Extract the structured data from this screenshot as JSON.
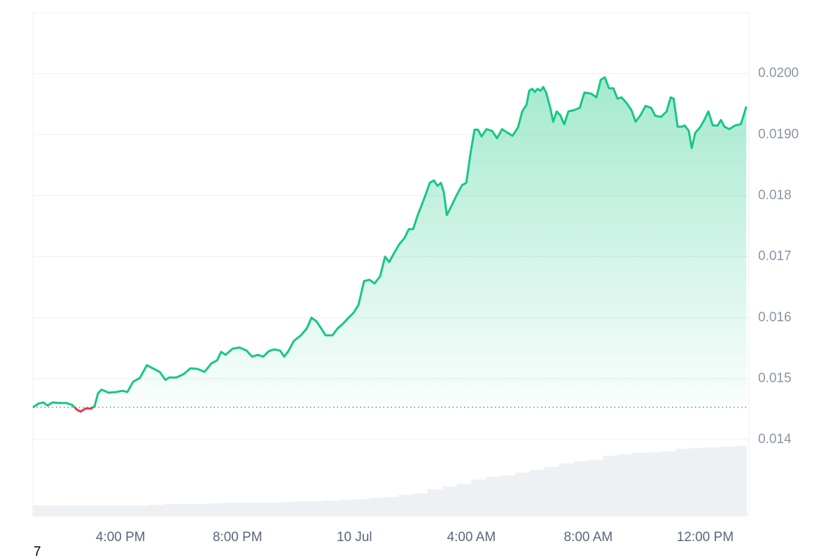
{
  "chart_data": {
    "type": "line",
    "color": "#16c784",
    "down_color": "#ea3943",
    "grid": true,
    "x": [
      13.0,
      13.19,
      13.36,
      13.5,
      13.67,
      13.91,
      14.15,
      14.34,
      14.51,
      14.63,
      14.8,
      14.99,
      15.11,
      15.23,
      15.35,
      15.59,
      15.83,
      16.07,
      16.23,
      16.43,
      16.66,
      16.9,
      17.14,
      17.34,
      17.53,
      17.67,
      17.91,
      18.15,
      18.39,
      18.63,
      18.87,
      19.11,
      19.3,
      19.44,
      19.59,
      19.83,
      20.07,
      20.31,
      20.5,
      20.69,
      20.88,
      21.07,
      21.26,
      21.46,
      21.6,
      21.74,
      21.93,
      22.17,
      22.37,
      22.53,
      22.7,
      22.84,
      23.01,
      23.25,
      23.42,
      23.61,
      23.8,
      23.97,
      24.14,
      24.33,
      24.52,
      24.69,
      24.88,
      25.05,
      25.19,
      25.36,
      25.53,
      25.72,
      25.86,
      26.01,
      26.15,
      26.29,
      26.44,
      26.58,
      26.72,
      26.84,
      26.96,
      27.06,
      27.16,
      27.32,
      27.49,
      27.68,
      27.83,
      27.97,
      28.11,
      28.23,
      28.35,
      28.52,
      28.71,
      28.88,
      29.05,
      29.24,
      29.41,
      29.6,
      29.74,
      29.89,
      29.98,
      30.08,
      30.17,
      30.27,
      30.37,
      30.46,
      30.56,
      30.7,
      30.8,
      30.92,
      31.04,
      31.18,
      31.32,
      31.51,
      31.71,
      31.87,
      32.11,
      32.28,
      32.43,
      32.57,
      32.71,
      32.86,
      33.0,
      33.14,
      33.31,
      33.48,
      33.62,
      33.79,
      33.96,
      34.15,
      34.29,
      34.49,
      34.68,
      34.82,
      34.92,
      35.06,
      35.2,
      35.3,
      35.44,
      35.54,
      35.66,
      35.83,
      35.97,
      36.11,
      36.26,
      36.43,
      36.54,
      36.66,
      36.83,
      37.02,
      37.22,
      37.41
    ],
    "values": [
      0.01453,
      0.01459,
      0.01461,
      0.01456,
      0.01461,
      0.0146,
      0.0146,
      0.01457,
      0.01449,
      0.01446,
      0.01451,
      0.01451,
      0.01455,
      0.01476,
      0.01482,
      0.01477,
      0.01478,
      0.0148,
      0.01478,
      0.01495,
      0.01501,
      0.01522,
      0.01516,
      0.01511,
      0.01498,
      0.01502,
      0.01502,
      0.01507,
      0.01517,
      0.01516,
      0.01511,
      0.01525,
      0.0153,
      0.01544,
      0.01539,
      0.01549,
      0.01551,
      0.01546,
      0.01536,
      0.01539,
      0.01536,
      0.01545,
      0.01548,
      0.01546,
      0.01536,
      0.01545,
      0.01562,
      0.01571,
      0.01582,
      0.016,
      0.01594,
      0.01584,
      0.01571,
      0.01571,
      0.01582,
      0.0159,
      0.016,
      0.01608,
      0.01621,
      0.0166,
      0.01662,
      0.01656,
      0.01668,
      0.017,
      0.01691,
      0.01706,
      0.0172,
      0.01731,
      0.01745,
      0.01745,
      0.01766,
      0.01783,
      0.01802,
      0.01821,
      0.01825,
      0.01816,
      0.01821,
      0.01805,
      0.01768,
      0.01783,
      0.018,
      0.01817,
      0.01821,
      0.01869,
      0.01908,
      0.01908,
      0.01897,
      0.01909,
      0.01906,
      0.01894,
      0.01909,
      0.01903,
      0.01898,
      0.01912,
      0.01938,
      0.01949,
      0.01972,
      0.01975,
      0.0197,
      0.01975,
      0.01972,
      0.01978,
      0.01969,
      0.01944,
      0.01921,
      0.01938,
      0.01932,
      0.01917,
      0.01938,
      0.0194,
      0.01944,
      0.01969,
      0.01967,
      0.01961,
      0.0199,
      0.01994,
      0.01976,
      0.01976,
      0.01959,
      0.01961,
      0.01952,
      0.0194,
      0.01921,
      0.01932,
      0.01947,
      0.01944,
      0.01931,
      0.01929,
      0.01938,
      0.01961,
      0.01959,
      0.01913,
      0.01913,
      0.01915,
      0.01906,
      0.01878,
      0.01903,
      0.01912,
      0.01924,
      0.01938,
      0.01915,
      0.01915,
      0.01924,
      0.01913,
      0.01909,
      0.01915,
      0.01917,
      0.01946
    ],
    "volume": {
      "x": [
        13.0,
        13.5,
        14.0,
        14.5,
        15.0,
        15.5,
        16.0,
        16.5,
        17.0,
        17.5,
        18.0,
        18.5,
        19.0,
        19.5,
        20.0,
        20.5,
        21.0,
        21.5,
        22.0,
        22.5,
        23.0,
        23.5,
        24.0,
        24.5,
        25.0,
        25.5,
        26.0,
        26.5,
        27.0,
        27.5,
        28.0,
        28.5,
        29.0,
        29.5,
        30.0,
        30.5,
        31.0,
        31.5,
        32.0,
        32.5,
        33.0,
        33.5,
        34.0,
        34.5,
        35.0,
        35.5,
        36.0,
        36.5,
        37.0
      ],
      "values": [
        15,
        15,
        15,
        15,
        15,
        15,
        15,
        15,
        16,
        17,
        17,
        17,
        18,
        19,
        19,
        19,
        19,
        20,
        21,
        21,
        22,
        23,
        24,
        26,
        27,
        30,
        32,
        38,
        42,
        46,
        52,
        56,
        58,
        62,
        66,
        70,
        75,
        78,
        80,
        86,
        88,
        90,
        91,
        92,
        96,
        97,
        98,
        99,
        100
      ]
    },
    "xlim": [
      13,
      37.5
    ],
    "xticks": [
      {
        "value": 16,
        "label": "4:00 PM"
      },
      {
        "value": 20,
        "label": "8:00 PM"
      },
      {
        "value": 24,
        "label": "10 Jul"
      },
      {
        "value": 28,
        "label": "4:00 AM"
      },
      {
        "value": 32,
        "label": "8:00 AM"
      },
      {
        "value": 36,
        "label": "12:00 PM"
      }
    ],
    "ylim": [
      0.01275,
      0.021
    ],
    "yticks": [
      0.014,
      0.015,
      0.016,
      0.017,
      0.018,
      {
        "value": 0.019,
        "label": "0.0190"
      },
      {
        "value": 0.02,
        "label": "0.0200"
      }
    ],
    "footnote": "7"
  }
}
